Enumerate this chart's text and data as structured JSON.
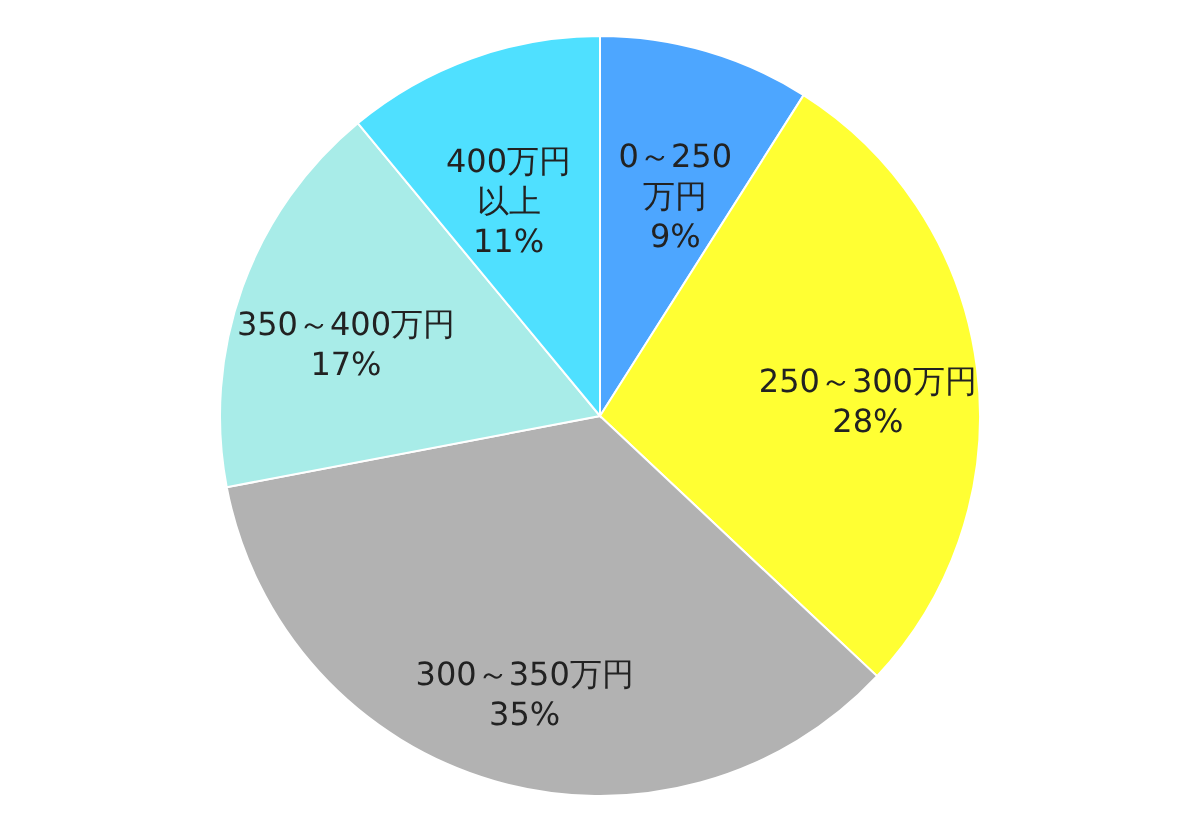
{
  "chart_data": {
    "type": "pie",
    "categories": [
      "0～250万円",
      "250～300万円",
      "300～350万円",
      "350～400万円",
      "400万円以上"
    ],
    "values": [
      9,
      28,
      35,
      17,
      11
    ],
    "value_labels": [
      "9%",
      "28%",
      "35%",
      "17%",
      "11%"
    ],
    "colors": [
      "#4da6ff",
      "#ffff33",
      "#b2b2b2",
      "#a8ece8",
      "#4fe0ff"
    ],
    "legend": false
  }
}
